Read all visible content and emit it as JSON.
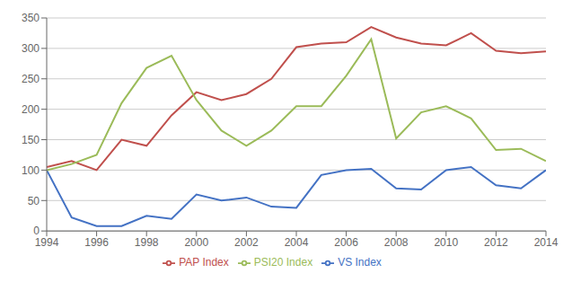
{
  "chart_data": {
    "type": "line",
    "x": [
      1994,
      1995,
      1996,
      1997,
      1998,
      1999,
      2000,
      2001,
      2002,
      2003,
      2004,
      2005,
      2006,
      2007,
      2008,
      2009,
      2010,
      2011,
      2012,
      2013,
      2014
    ],
    "series": [
      {
        "name": "VS Index",
        "color": "#4472C4",
        "values": [
          100,
          22,
          8,
          8,
          25,
          20,
          60,
          50,
          55,
          40,
          38,
          92,
          100,
          102,
          70,
          68,
          100,
          105,
          75,
          70,
          100
        ]
      },
      {
        "name": "PAP Index",
        "color": "#C0504D",
        "values": [
          105,
          115,
          100,
          150,
          140,
          190,
          228,
          215,
          225,
          250,
          302,
          308,
          310,
          335,
          318,
          308,
          305,
          325,
          296,
          292,
          295
        ]
      },
      {
        "name": "PSI20 Index",
        "color": "#9BBB59",
        "values": [
          100,
          110,
          125,
          210,
          268,
          288,
          215,
          165,
          140,
          165,
          205,
          205,
          255,
          315,
          152,
          195,
          205,
          185,
          133,
          135,
          115
        ]
      }
    ],
    "xlim": [
      1994,
      2014
    ],
    "xticks": [
      1994,
      1996,
      1998,
      2000,
      2002,
      2004,
      2006,
      2008,
      2010,
      2012,
      2014
    ],
    "ylim": [
      0,
      350
    ],
    "yticks": [
      0,
      50,
      100,
      150,
      200,
      250,
      300,
      350
    ],
    "grid": true,
    "legend": "bottom"
  }
}
